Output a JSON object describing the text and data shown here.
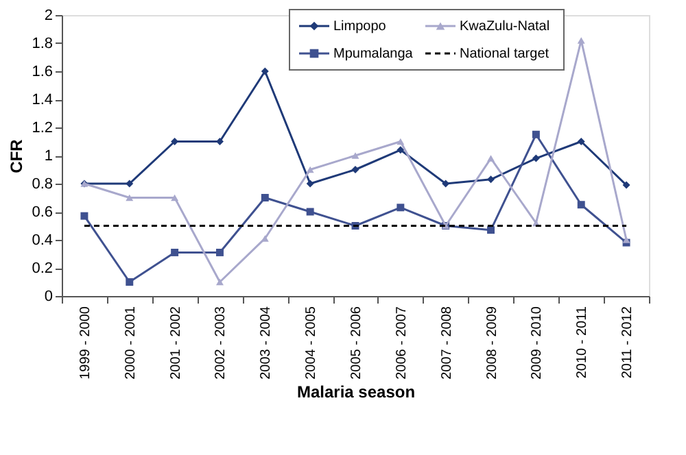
{
  "chart_data": {
    "type": "line",
    "xlabel": "Malaria season",
    "ylabel": "CFR",
    "categories": [
      "1999 - 2000",
      "2000 - 2001",
      "2001 - 2002",
      "2002 - 2003",
      "2003 - 2004",
      "2004 - 2005",
      "2005 - 2006",
      "2006 - 2007",
      "2007 - 2008",
      "2008 - 2009",
      "2009 - 2010",
      "2010 - 2011",
      "2011 - 2012"
    ],
    "series": [
      {
        "name": "Limpopo",
        "color": "#1f3a78",
        "marker": "diamond",
        "values": [
          0.8,
          0.8,
          1.1,
          1.1,
          1.6,
          0.8,
          0.9,
          1.04,
          0.8,
          0.83,
          0.98,
          1.1,
          0.79
        ]
      },
      {
        "name": "Mpumalanga",
        "color": "#3f5190",
        "marker": "square",
        "values": [
          0.57,
          0.1,
          0.31,
          0.31,
          0.7,
          0.6,
          0.5,
          0.63,
          0.5,
          0.47,
          1.15,
          0.65,
          0.38
        ]
      },
      {
        "name": "KwaZulu-Natal",
        "color": "#a8a8cc",
        "marker": "triangle",
        "values": [
          0.8,
          0.7,
          0.7,
          0.1,
          0.41,
          0.9,
          1.0,
          1.1,
          0.5,
          0.98,
          0.52,
          1.82,
          0.4
        ]
      }
    ],
    "ref_lines": [
      {
        "axis": "y",
        "value": 0.5,
        "label": "National target",
        "color": "#000000",
        "line_style": "dashed"
      }
    ],
    "ylim": [
      0,
      2
    ],
    "yticks": [
      0,
      0.2,
      0.4,
      0.6,
      0.8,
      1,
      1.2,
      1.4,
      1.6,
      1.8,
      2
    ],
    "grid": false,
    "legend": "top right",
    "line_style": "solid"
  }
}
